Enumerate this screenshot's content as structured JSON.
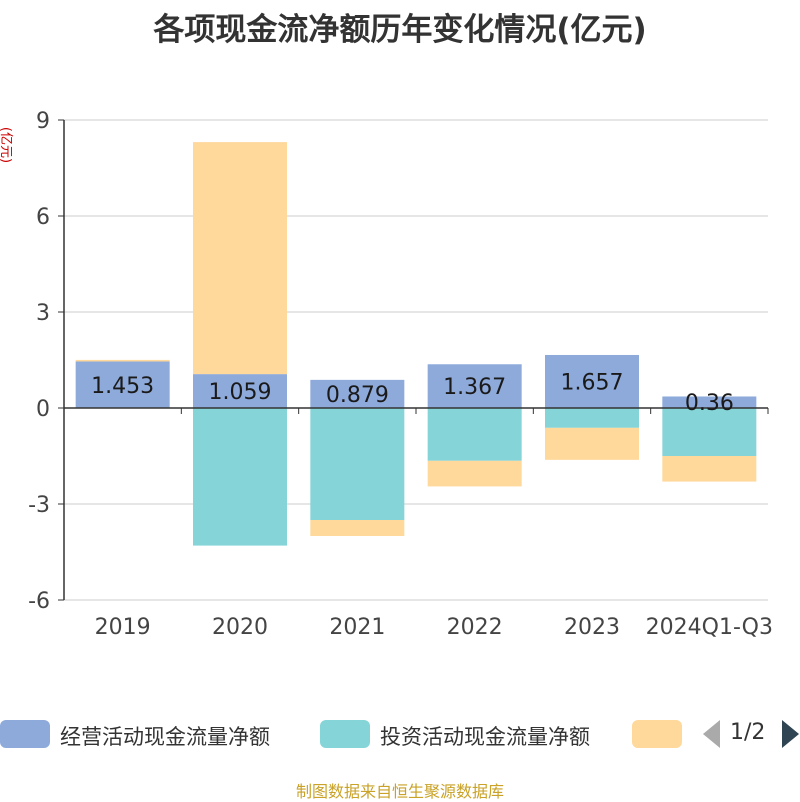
{
  "chart_data": {
    "type": "bar",
    "stacked": true,
    "title": "各项现金流净额历年变化情况(亿元)",
    "ylabel": "(亿元)",
    "xlabel": "",
    "categories": [
      "2019",
      "2020",
      "2021",
      "2022",
      "2023",
      "2024Q1-Q3"
    ],
    "ylim": [
      -6,
      9
    ],
    "yticks": [
      9,
      6,
      3,
      0,
      -3,
      -6
    ],
    "grid": true,
    "series": [
      {
        "name": "经营活动现金流量净额",
        "color": "#8eaadb",
        "values": [
          1.453,
          1.059,
          0.879,
          1.367,
          1.657,
          0.36
        ],
        "labels": [
          "1.453",
          "1.059",
          "0.879",
          "1.367",
          "1.657",
          "0.36"
        ]
      },
      {
        "name": "投资活动现金流量净额",
        "color": "#85d4d8",
        "values": [
          0.0,
          -4.3,
          -3.5,
          -1.65,
          -0.62,
          -1.5
        ]
      },
      {
        "name": "",
        "color": "#ffd89b",
        "values": [
          0.05,
          7.25,
          -0.5,
          -0.8,
          -1.0,
          -0.8
        ]
      }
    ],
    "legend_position": "bottom",
    "legend_page": "1/2"
  },
  "source_note": "制图数据来自恒生聚源数据库"
}
